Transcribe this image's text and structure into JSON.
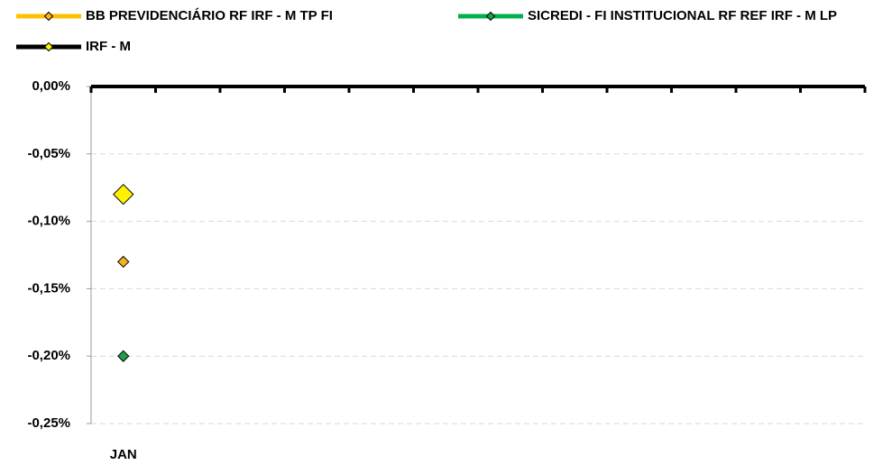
{
  "chart_data": {
    "type": "line",
    "categories": [
      "JAN",
      null,
      null,
      null,
      null,
      null,
      null,
      null,
      null,
      null,
      null,
      null
    ],
    "series": [
      {
        "name": "BB PREVIDENCIÁRIO RF IRF - M TP FI",
        "color": "#FFC000",
        "marker_color": "#F5B41E",
        "values": [
          -0.13,
          null,
          null,
          null,
          null,
          null,
          null,
          null,
          null,
          null,
          null,
          null
        ]
      },
      {
        "name": "SICREDI - FI INSTITUCIONAL RF REF IRF - M LP",
        "color": "#00B050",
        "marker_color": "#1E9E4A",
        "values": [
          -0.2,
          null,
          null,
          null,
          null,
          null,
          null,
          null,
          null,
          null,
          null,
          null
        ]
      },
      {
        "name": "IRF - M",
        "color": "#000000",
        "marker_color": "#FFF200",
        "values": [
          -0.08,
          null,
          null,
          null,
          null,
          null,
          null,
          null,
          null,
          null,
          null,
          null
        ]
      }
    ],
    "ylim": [
      -0.25,
      0
    ],
    "yticks": [
      {
        "value": 0,
        "label": "0,00%"
      },
      {
        "value": -0.05,
        "label": "-0,05%"
      },
      {
        "value": -0.1,
        "label": "-0,10%"
      },
      {
        "value": -0.15,
        "label": "-0,15%"
      },
      {
        "value": -0.2,
        "label": "-0,20%"
      },
      {
        "value": -0.25,
        "label": "-0,25%"
      }
    ],
    "grid": true,
    "legend": "top"
  }
}
